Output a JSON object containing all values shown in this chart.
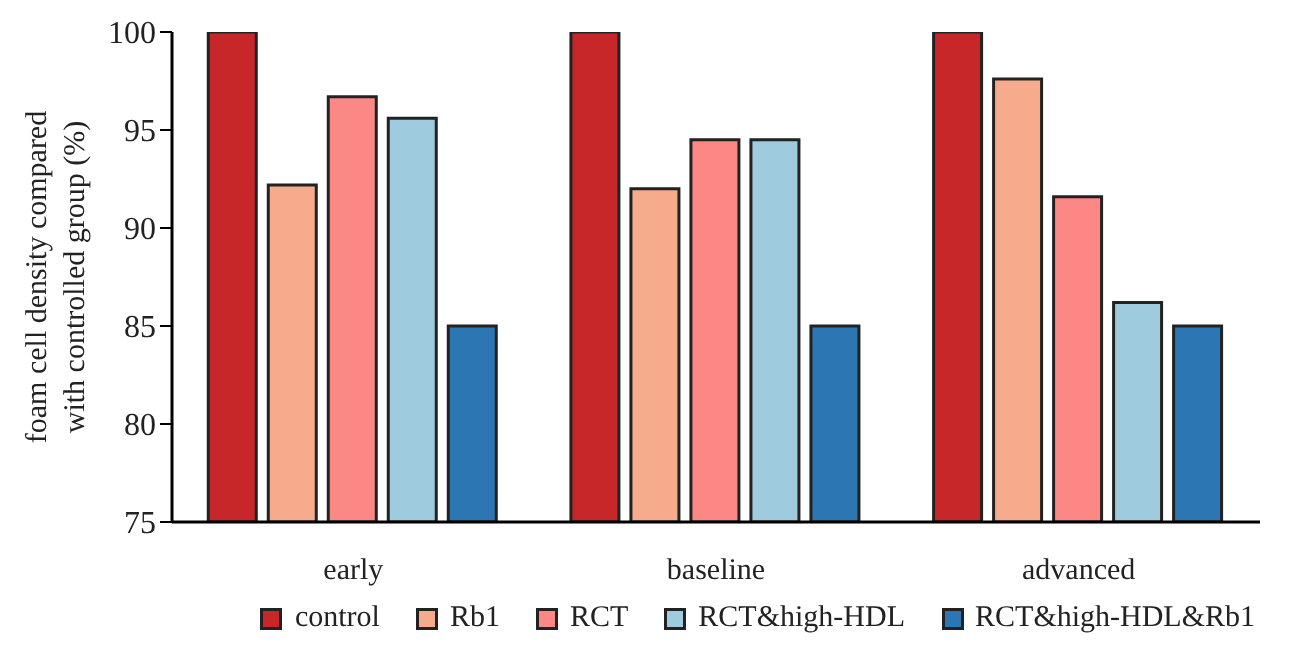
{
  "chart_data": {
    "type": "bar",
    "ylabel": "foam cell density compared\nwith controlled group (%)",
    "categories": [
      "early",
      "baseline",
      "advanced"
    ],
    "series": [
      {
        "name": "control",
        "color": "#c8272a",
        "values": [
          100,
          100,
          100
        ]
      },
      {
        "name": "Rb1",
        "color": "#f6ab8c",
        "values": [
          92.2,
          92.0,
          97.6
        ]
      },
      {
        "name": "RCT",
        "color": "#fb8884",
        "values": [
          96.7,
          94.5,
          91.6
        ]
      },
      {
        "name": "RCT&high-HDL",
        "color": "#9ecbdd",
        "values": [
          95.6,
          94.5,
          86.2
        ]
      },
      {
        "name": "RCT&high-HDL&Rb1",
        "color": "#2b76b3",
        "values": [
          85,
          85,
          85
        ]
      }
    ],
    "ylim": [
      75,
      100
    ],
    "yticks": [
      75,
      80,
      85,
      90,
      95,
      100
    ],
    "grid": false,
    "legend": "bottom"
  }
}
